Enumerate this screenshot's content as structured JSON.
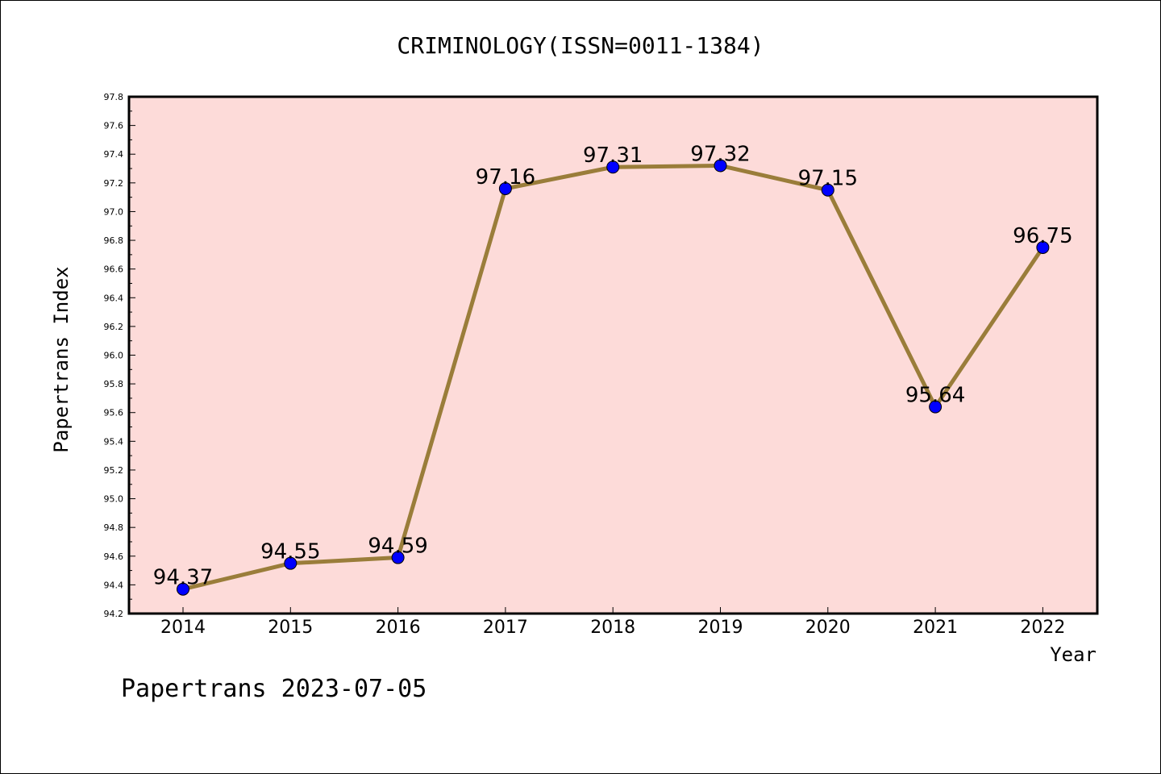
{
  "chart_data": {
    "type": "line",
    "title": "CRIMINOLOGY(ISSN=0011-1384)",
    "xlabel": "Year",
    "ylabel": "Papertrans Index",
    "categories": [
      "2014",
      "2015",
      "2016",
      "2017",
      "2018",
      "2019",
      "2020",
      "2021",
      "2022"
    ],
    "series": [
      {
        "values": [
          94.37,
          94.55,
          94.59,
          97.16,
          97.31,
          97.32,
          97.15,
          95.64,
          96.75
        ],
        "data_labels": [
          "94.37",
          "94.55",
          "94.59",
          "97.16",
          "97.31",
          "97.32",
          "97.15",
          "95.64",
          "96.75"
        ]
      }
    ],
    "ylim": [
      94.2,
      97.8
    ],
    "yticks": [
      "94.2",
      "94.4",
      "94.6",
      "94.8",
      "95.0",
      "95.2",
      "95.4",
      "95.6",
      "95.8",
      "96.0",
      "96.2",
      "96.4",
      "96.6",
      "96.8",
      "97.0",
      "97.2",
      "97.4",
      "97.6",
      "97.8"
    ],
    "grid": false,
    "legend": "none",
    "colors": {
      "plot_background": "#fddbd9",
      "line": "#9a7d3a",
      "marker": "#0000ff"
    }
  },
  "footer": {
    "text": "Papertrans 2023-07-05"
  }
}
